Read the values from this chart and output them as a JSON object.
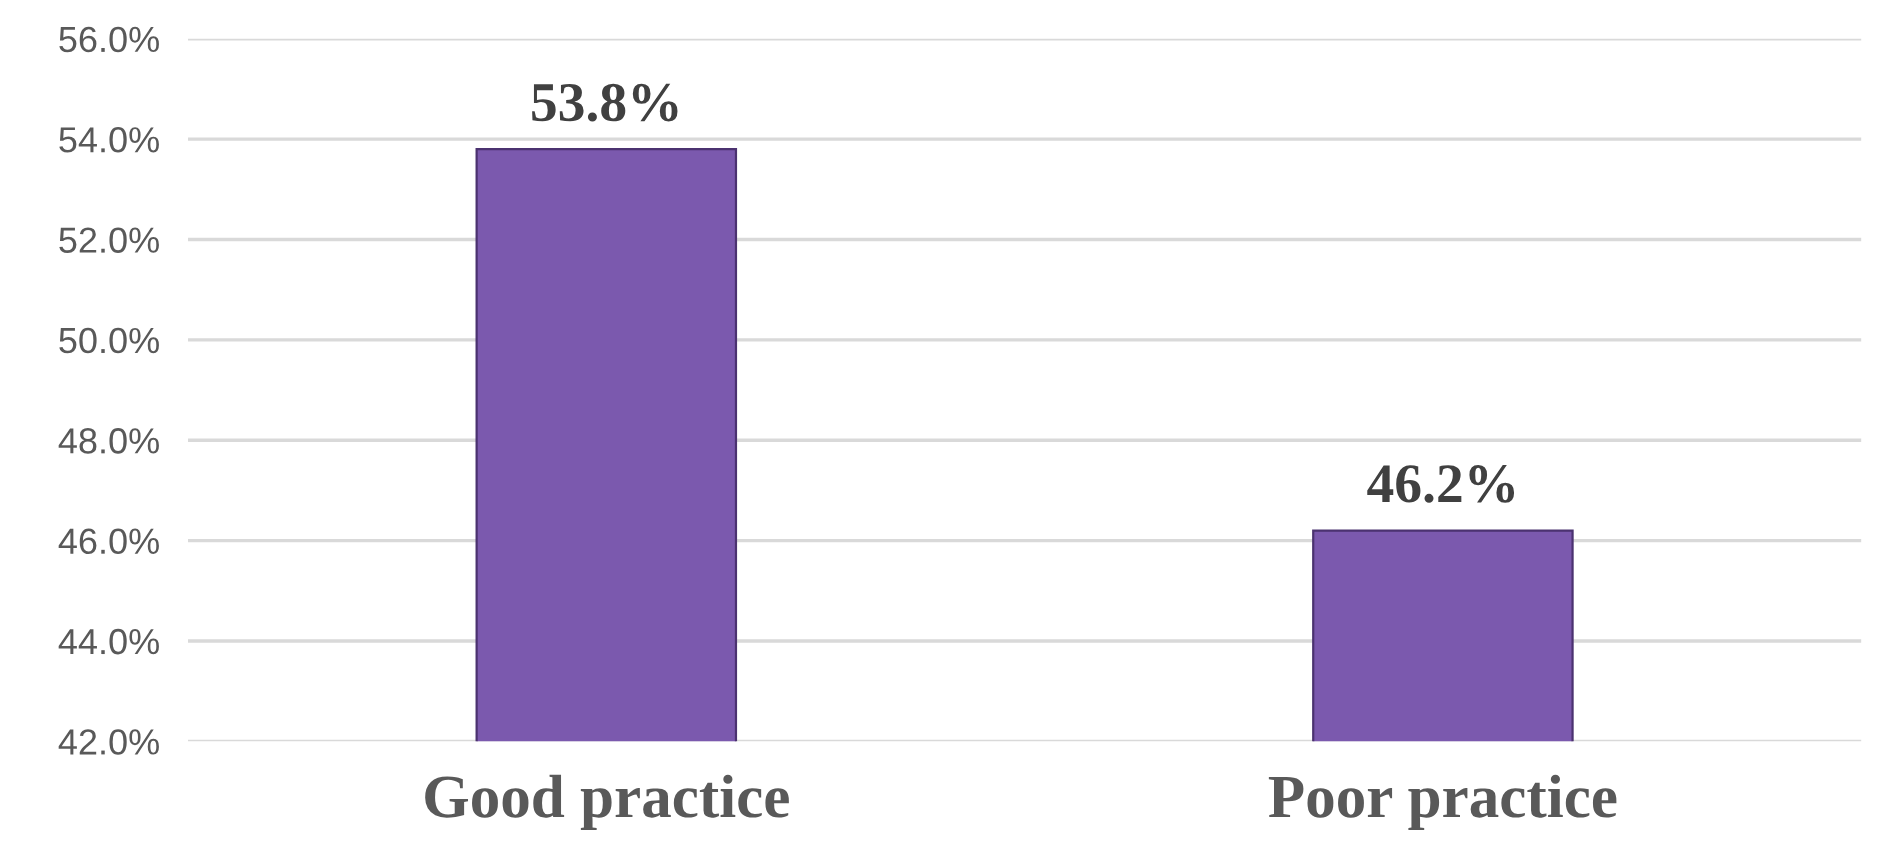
{
  "chart_data": {
    "type": "bar",
    "categories": [
      "Good practice",
      "Poor practice"
    ],
    "values": [
      53.8,
      46.2
    ],
    "color": "#7b59ae",
    "value_labels": [
      "53.8%",
      "46.2%"
    ],
    "ylim": [
      42,
      56
    ],
    "yticks": [
      {
        "value": 42,
        "label": "42.0%"
      },
      {
        "value": 44,
        "label": "44.0%"
      },
      {
        "value": 46,
        "label": "46.0%"
      },
      {
        "value": 48,
        "label": "48.0%"
      },
      {
        "value": 50,
        "label": "50.0%"
      },
      {
        "value": 52,
        "label": "52.0%"
      },
      {
        "value": 54,
        "label": "54.0%"
      },
      {
        "value": 56,
        "label": "56.0%"
      }
    ],
    "grid": "y",
    "legend": false
  }
}
